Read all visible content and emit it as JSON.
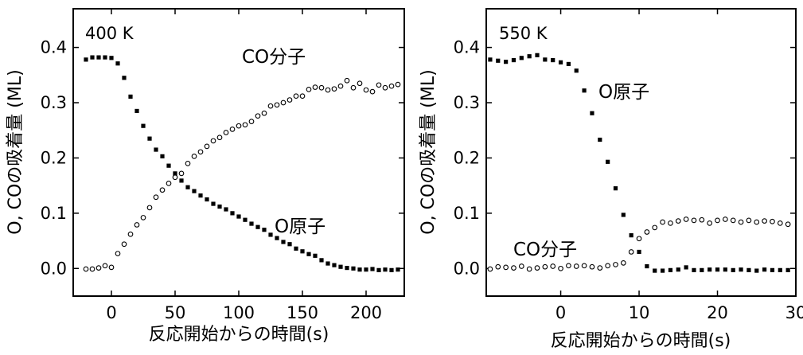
{
  "chart_data": [
    {
      "type": "scatter",
      "temperature_label": "400 K",
      "xlabel": "反応開始からの時間(s)",
      "ylabel": "O, COの吸着量 (ML)",
      "xlim": [
        -30,
        230
      ],
      "ylim": [
        -0.05,
        0.47
      ],
      "xticks": [
        0,
        50,
        100,
        150,
        200
      ],
      "yticks": [
        0.0,
        0.1,
        0.2,
        0.3,
        0.4
      ],
      "grid": false,
      "annotations": [
        {
          "text": "CO分子",
          "x": 85,
          "y": 0.36
        },
        {
          "text": "O原子",
          "x": 182,
          "y": 0.087
        }
      ],
      "series": [
        {
          "name": "O原子",
          "marker": "filled-square",
          "x": [
            -20,
            -15,
            -10,
            -5,
            0,
            5,
            10,
            15,
            20,
            25,
            30,
            35,
            40,
            45,
            50,
            55,
            60,
            65,
            70,
            75,
            80,
            85,
            90,
            95,
            100,
            105,
            110,
            115,
            120,
            125,
            130,
            135,
            140,
            145,
            150,
            155,
            160,
            165,
            170,
            175,
            180,
            185,
            190,
            195,
            200,
            205,
            210,
            215,
            220,
            225
          ],
          "y": [
            0.378,
            0.382,
            0.382,
            0.382,
            0.381,
            0.371,
            0.345,
            0.311,
            0.285,
            0.258,
            0.235,
            0.215,
            0.203,
            0.186,
            0.172,
            0.159,
            0.147,
            0.14,
            0.132,
            0.125,
            0.117,
            0.112,
            0.107,
            0.1,
            0.094,
            0.088,
            0.081,
            0.075,
            0.07,
            0.061,
            0.055,
            0.048,
            0.044,
            0.036,
            0.031,
            0.026,
            0.023,
            0.015,
            0.009,
            0.006,
            0.003,
            0.001,
            0.0,
            -0.002,
            -0.002,
            -0.001,
            -0.003,
            -0.002,
            -0.003,
            -0.002
          ]
        },
        {
          "name": "CO分子",
          "marker": "open-circle",
          "x": [
            -20,
            -15,
            -10,
            -5,
            0,
            5,
            10,
            15,
            20,
            25,
            30,
            35,
            40,
            45,
            50,
            55,
            60,
            65,
            70,
            75,
            80,
            85,
            90,
            95,
            100,
            105,
            110,
            115,
            120,
            125,
            130,
            135,
            140,
            145,
            150,
            155,
            160,
            165,
            170,
            175,
            180,
            185,
            190,
            195,
            200,
            205,
            210,
            215,
            220,
            225
          ],
          "y": [
            -0.001,
            -0.001,
            0.001,
            0.005,
            0.002,
            0.027,
            0.044,
            0.062,
            0.079,
            0.092,
            0.11,
            0.129,
            0.142,
            0.154,
            0.165,
            0.172,
            0.19,
            0.203,
            0.211,
            0.221,
            0.231,
            0.237,
            0.246,
            0.252,
            0.258,
            0.26,
            0.266,
            0.276,
            0.281,
            0.294,
            0.296,
            0.3,
            0.305,
            0.312,
            0.312,
            0.324,
            0.328,
            0.327,
            0.323,
            0.325,
            0.33,
            0.34,
            0.327,
            0.335,
            0.323,
            0.32,
            0.332,
            0.327,
            0.33,
            0.333
          ]
        }
      ]
    },
    {
      "type": "scatter",
      "temperature_label": "550 K",
      "xlabel": "反応開始からの時間(s)",
      "ylabel": "O, COの吸着量 (ML)",
      "xlim": [
        -9.5,
        30
      ],
      "ylim": [
        -0.05,
        0.47
      ],
      "xticks": [
        0,
        10,
        20,
        30
      ],
      "yticks": [
        0.0,
        0.1,
        0.2,
        0.3,
        0.4
      ],
      "grid": false,
      "annotations": [
        {
          "text": "O原子",
          "x": 9.8,
          "y": 0.33
        },
        {
          "text": "CO分子",
          "x": 2.3,
          "y": 0.05
        }
      ],
      "series": [
        {
          "name": "O原子",
          "marker": "filled-square",
          "x": [
            -9,
            -8,
            -7,
            -6,
            -5,
            -4,
            -3,
            -2,
            -1,
            0,
            1,
            2,
            3,
            4,
            5,
            6,
            7,
            8,
            9,
            10,
            11,
            12,
            13,
            14,
            15,
            16,
            17,
            18,
            19,
            20,
            21,
            22,
            23,
            24,
            25,
            26,
            27,
            28,
            29
          ],
          "y": [
            0.378,
            0.376,
            0.374,
            0.377,
            0.381,
            0.384,
            0.386,
            0.378,
            0.377,
            0.373,
            0.37,
            0.358,
            0.322,
            0.281,
            0.233,
            0.193,
            0.145,
            0.097,
            0.06,
            0.03,
            0.004,
            -0.004,
            -0.004,
            -0.003,
            -0.002,
            0.002,
            -0.003,
            -0.003,
            -0.002,
            -0.002,
            -0.002,
            -0.003,
            -0.002,
            -0.003,
            -0.004,
            -0.002,
            -0.003,
            -0.003,
            -0.003
          ]
        },
        {
          "name": "CO分子",
          "marker": "open-circle",
          "x": [
            -9,
            -8,
            -7,
            -6,
            -5,
            -4,
            -3,
            -2,
            -1,
            0,
            1,
            2,
            3,
            4,
            5,
            6,
            7,
            8,
            9,
            10,
            11,
            12,
            13,
            14,
            15,
            16,
            17,
            18,
            19,
            20,
            21,
            22,
            23,
            24,
            25,
            26,
            27,
            28,
            29
          ],
          "y": [
            -0.001,
            0.003,
            0.002,
            0.001,
            0.004,
            -0.001,
            0.001,
            0.003,
            0.004,
            0.0,
            0.005,
            0.004,
            0.005,
            0.003,
            0.001,
            0.005,
            0.007,
            0.01,
            0.03,
            0.054,
            0.066,
            0.074,
            0.084,
            0.082,
            0.086,
            0.089,
            0.087,
            0.088,
            0.082,
            0.087,
            0.089,
            0.087,
            0.084,
            0.087,
            0.084,
            0.086,
            0.085,
            0.082,
            0.08
          ]
        }
      ]
    }
  ]
}
